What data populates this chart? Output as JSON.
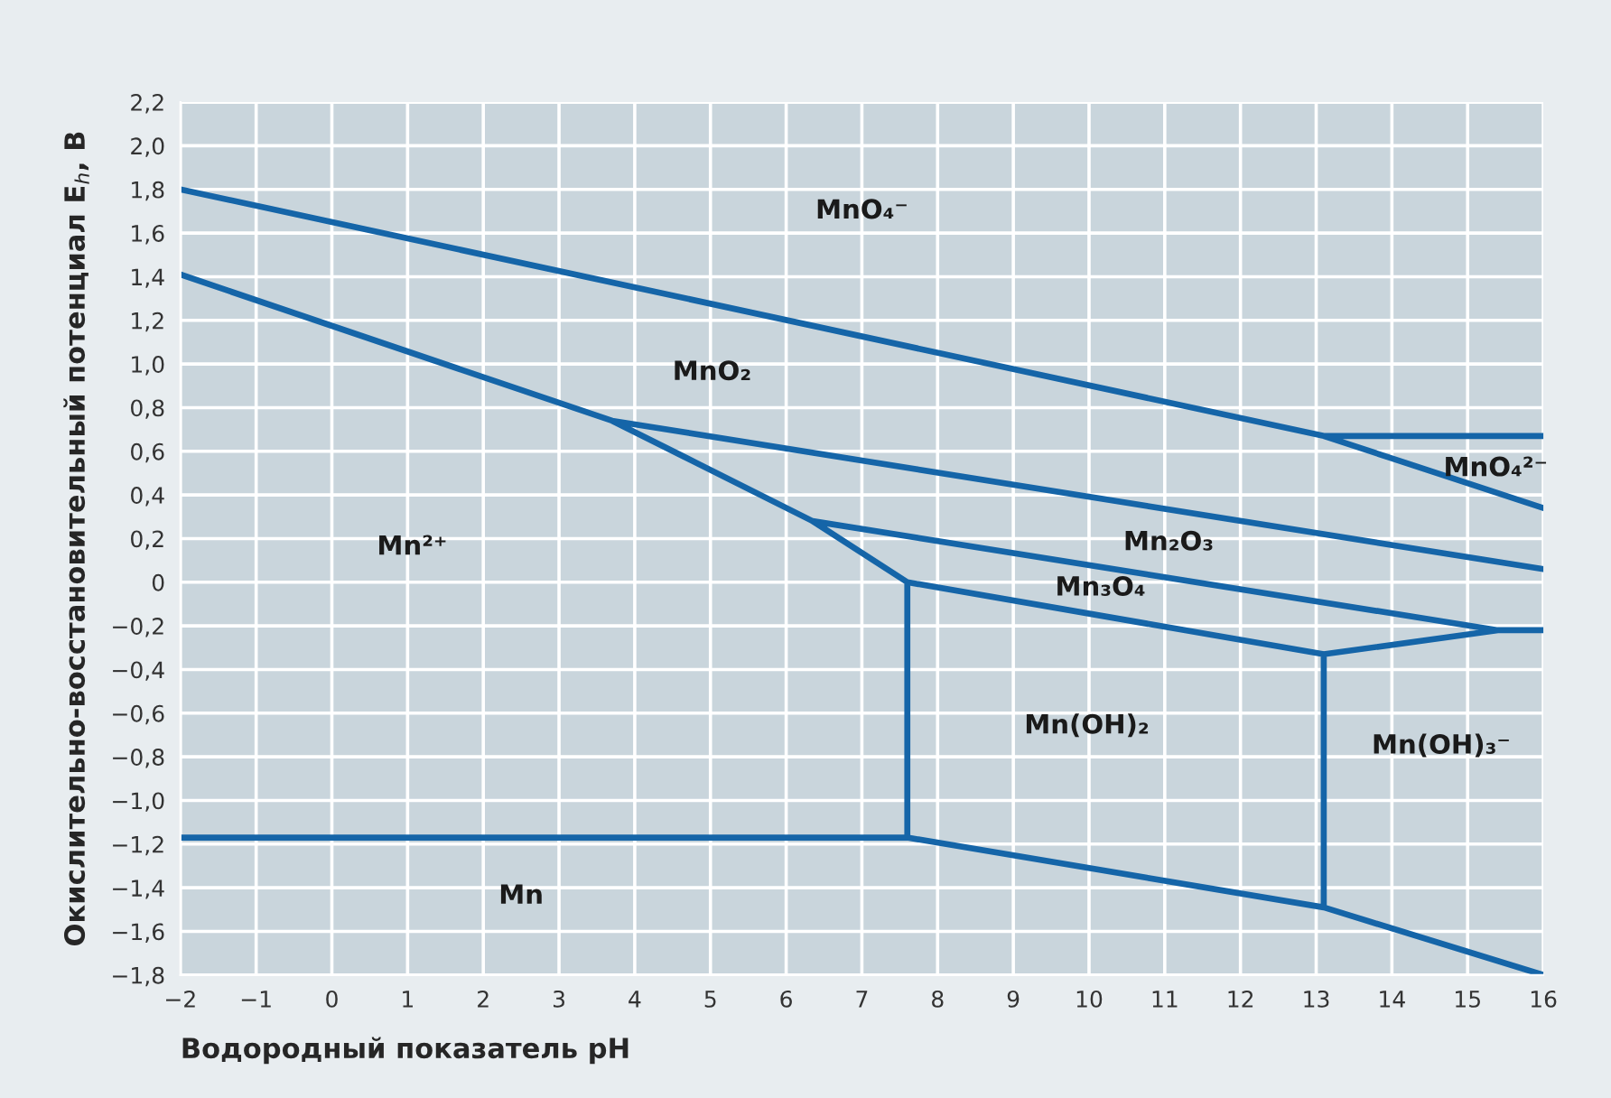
{
  "chart_data": {
    "type": "line",
    "xlabel": "Водородный показатель pH",
    "ylabel": "Окислительно-восстановительный потенциал E$_{h}$, В",
    "xlim": [
      -2,
      16
    ],
    "xticks": [
      {
        "value": -2,
        "label": "−2"
      },
      {
        "value": -1,
        "label": "−1"
      },
      0,
      1,
      2,
      3,
      4,
      5,
      6,
      7,
      8,
      9,
      10,
      11,
      12,
      13,
      14,
      15,
      16
    ],
    "ylim": [
      -1.8,
      2.2
    ],
    "yticks": [
      {
        "value": -1.8,
        "label": "−1,8"
      },
      {
        "value": -1.6,
        "label": "−1,6"
      },
      {
        "value": -1.4,
        "label": "−1,4"
      },
      {
        "value": -1.2,
        "label": "−1,2"
      },
      {
        "value": -1.0,
        "label": "−1,0"
      },
      {
        "value": -0.8,
        "label": "−0,8"
      },
      {
        "value": -0.6,
        "label": "−0,6"
      },
      {
        "value": -0.4,
        "label": "−0,4"
      },
      {
        "value": -0.2,
        "label": "−0,2"
      },
      {
        "value": 0,
        "label": "0"
      },
      {
        "value": 0.2,
        "label": "0,2"
      },
      {
        "value": 0.4,
        "label": "0,4"
      },
      {
        "value": 0.6,
        "label": "0,6"
      },
      {
        "value": 0.8,
        "label": "0,8"
      },
      {
        "value": 1.0,
        "label": "1,0"
      },
      {
        "value": 1.2,
        "label": "1,2"
      },
      {
        "value": 1.4,
        "label": "1,4"
      },
      {
        "value": 1.6,
        "label": "1,6"
      },
      {
        "value": 1.8,
        "label": "1,8"
      },
      {
        "value": 2.0,
        "label": "2,0"
      },
      {
        "value": 2.2,
        "label": "2,2"
      }
    ],
    "grid": true,
    "marker": "none",
    "line_style": "solid",
    "series": [
      {
        "color": "#1565a8",
        "x": [
          -2,
          13.1,
          16,
          null,
          13.1,
          16,
          null,
          -2,
          3.7,
          6.35,
          7.6,
          13.1,
          15.4,
          16,
          null,
          3.7,
          16,
          null,
          6.35,
          15.4,
          null,
          7.6,
          7.6,
          13.1,
          16,
          null,
          -2,
          7.6,
          null,
          13.1,
          13.1
        ],
        "values": [
          1.8,
          0.67,
          0.34,
          null,
          0.67,
          0.67,
          null,
          1.41,
          0.74,
          0.28,
          0.0,
          -0.33,
          -0.22,
          -0.22,
          null,
          0.74,
          0.06,
          null,
          0.28,
          -0.22,
          null,
          0.0,
          -1.17,
          -1.49,
          -1.8,
          null,
          -1.17,
          -1.17,
          null,
          -0.33,
          -1.49
        ]
      }
    ],
    "annotations": [
      "MnO₄⁻",
      "MnO₂",
      "Mn²⁺",
      "Mn₂O₃",
      "Mn₃O₄",
      "Mn(OH)₂",
      "Mn(OH)₃⁻",
      "MnO₄²⁻",
      "Mn"
    ]
  }
}
